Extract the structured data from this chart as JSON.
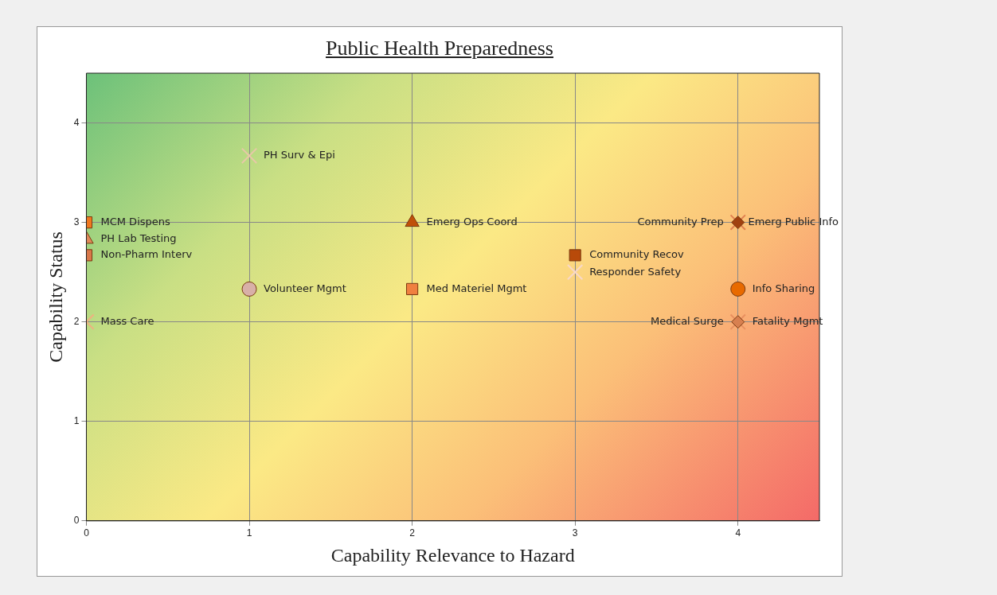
{
  "chart_data": {
    "type": "scatter",
    "title": "Public Health Preparedness",
    "xlabel": "Capability Relevance to Hazard",
    "ylabel": "Capability Status",
    "xlim": [
      0,
      4.5
    ],
    "ylim": [
      0,
      4.5
    ],
    "xticks": [
      0,
      1,
      2,
      3,
      4
    ],
    "yticks": [
      0,
      1,
      2,
      3,
      4
    ],
    "grid": true,
    "series": [
      {
        "name": "PH Surv & Epi",
        "color": "#e8c8a8",
        "marker": "cross",
        "x": [
          1
        ],
        "values": [
          3.67
        ]
      },
      {
        "name": "MCM Dispens",
        "color": "#f07820",
        "marker": "square",
        "x": [
          0
        ],
        "values": [
          3
        ]
      },
      {
        "name": "PH Lab Testing",
        "color": "#e0895a",
        "marker": "triangle",
        "x": [
          0
        ],
        "values": [
          2.83
        ]
      },
      {
        "name": "Non-Pharm Interv",
        "color": "#d8784a",
        "marker": "square",
        "x": [
          0
        ],
        "values": [
          2.67
        ]
      },
      {
        "name": "Volunteer Mgmt",
        "color": "#d8b0a8",
        "marker": "circle",
        "x": [
          1
        ],
        "values": [
          2.33
        ]
      },
      {
        "name": "Mass Care",
        "color": "#f0b080",
        "marker": "cross",
        "x": [
          0
        ],
        "values": [
          2
        ]
      },
      {
        "name": "Emerg Ops Coord",
        "color": "#c0500a",
        "marker": "triangle",
        "x": [
          2
        ],
        "values": [
          3
        ]
      },
      {
        "name": "Med Materiel Mgmt",
        "color": "#f08040",
        "marker": "square",
        "x": [
          2
        ],
        "values": [
          2.33
        ]
      },
      {
        "name": "Community Recov",
        "color": "#b84a0a",
        "marker": "square",
        "x": [
          3
        ],
        "values": [
          2.67
        ]
      },
      {
        "name": "Responder Safety",
        "color": "#f8d8c8",
        "marker": "cross",
        "x": [
          3
        ],
        "values": [
          2.5
        ]
      },
      {
        "name": "Emerg Public Info",
        "color": "#e08050",
        "marker": "cross",
        "x": [
          4
        ],
        "values": [
          3
        ]
      },
      {
        "name": "Community Prep",
        "color": "#a04010",
        "marker": "diamond",
        "x": [
          4
        ],
        "values": [
          3
        ]
      },
      {
        "name": "Info Sharing",
        "color": "#e86a00",
        "marker": "circle",
        "x": [
          4
        ],
        "values": [
          2.33
        ]
      },
      {
        "name": "Fatality Mgmt",
        "color": "#e89060",
        "marker": "cross",
        "x": [
          4
        ],
        "values": [
          2
        ]
      },
      {
        "name": "Medical Surge",
        "color": "#d88050",
        "marker": "diamond",
        "x": [
          4
        ],
        "values": [
          2
        ]
      }
    ]
  }
}
